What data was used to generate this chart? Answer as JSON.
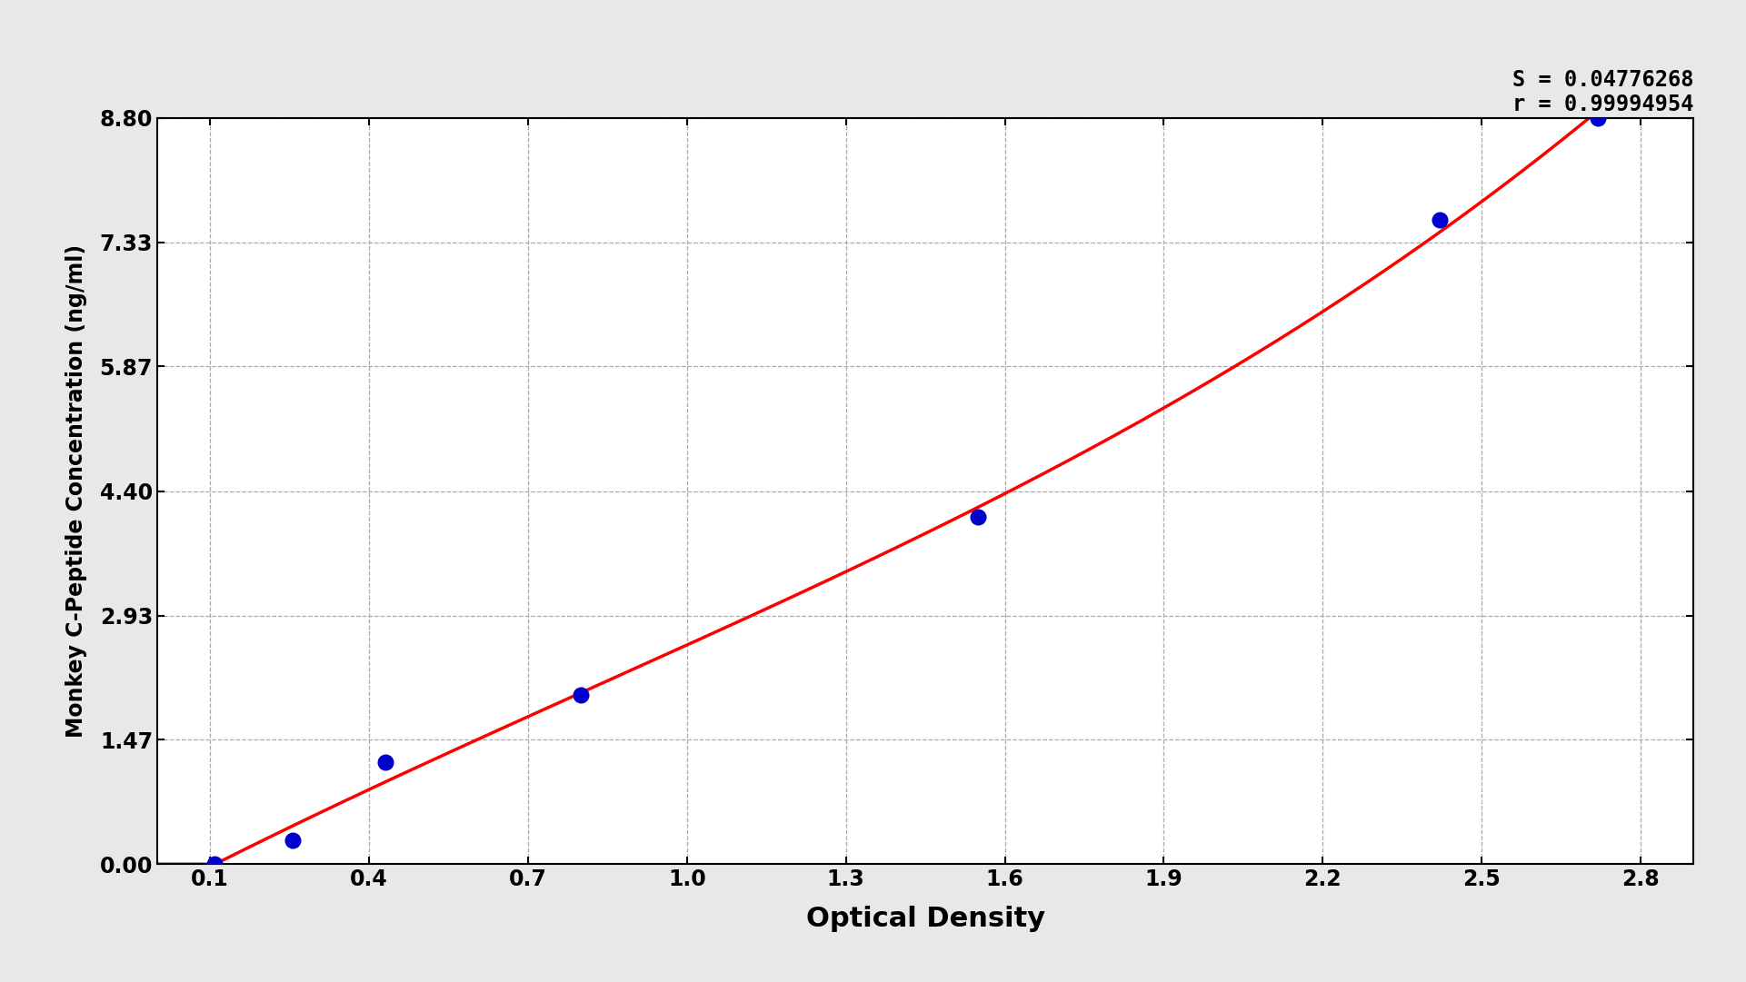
{
  "x_data": [
    0.108,
    0.255,
    0.43,
    0.8,
    1.55,
    2.42,
    2.72
  ],
  "y_data": [
    0.0,
    0.28,
    1.2,
    2.0,
    4.1,
    7.6,
    8.8
  ],
  "xlabel": "Optical Density",
  "ylabel": "Monkey C-Peptide Concentration (ng/ml)",
  "xlim": [
    0.0,
    2.9
  ],
  "ylim": [
    0.0,
    8.8
  ],
  "xticks": [
    0.1,
    0.4,
    0.7,
    1.0,
    1.3,
    1.6,
    1.9,
    2.2,
    2.5,
    2.8
  ],
  "xtick_labels": [
    "0.1",
    "0.4",
    "0.7",
    "1.0",
    "1.3",
    "1.6",
    "1.9",
    "2.2",
    "2.5",
    "2.8"
  ],
  "yticks": [
    0.0,
    1.47,
    2.93,
    4.4,
    5.87,
    7.33,
    8.8
  ],
  "ytick_labels": [
    "0.00",
    "1.47",
    "2.93",
    "4.40",
    "5.87",
    "7.33",
    "8.80"
  ],
  "grid_color": "#aaaaaa",
  "background_color": "#e8e8e8",
  "plot_bg_color": "#ffffff",
  "line_color": "#ff0000",
  "marker_color": "#0000cc",
  "marker_edge_color": "#0000cc",
  "annotation_text_line1": "S = 0.04776268",
  "annotation_text_line2": "r = 0.99994954",
  "xlabel_fontsize": 22,
  "ylabel_fontsize": 17,
  "tick_fontsize": 17,
  "annotation_fontsize": 17,
  "line_width": 2.5,
  "marker_size": 13
}
